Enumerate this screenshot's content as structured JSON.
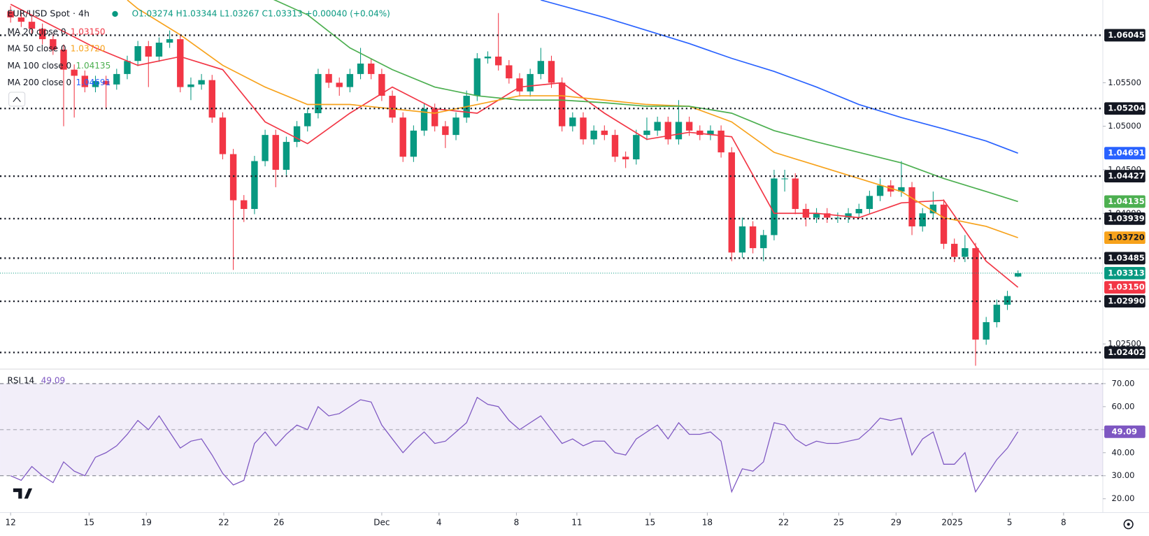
{
  "chart_data": [
    {
      "type": "candlestick",
      "title": "EUR/USD Spot · 4h",
      "quote": "O1.03274 H1.03344 L1.03267 C1.03313 +0.00040 (+0.04%)",
      "up_color": "#089981",
      "down_color": "#f23645",
      "xlim": [
        -1,
        103
      ],
      "ylim": [
        1.0222,
        1.0645
      ],
      "yticks": [
        {
          "value": 1.055,
          "label": "1.05500"
        },
        {
          "value": 1.05,
          "label": "1.05000"
        },
        {
          "value": 1.045,
          "label": "1.04500"
        },
        {
          "value": 1.04,
          "label": "1.04000"
        },
        {
          "value": 1.025,
          "label": "1.02500"
        }
      ],
      "levels": [
        1.06045,
        1.05204,
        1.04427,
        1.03939,
        1.03485,
        {
          "value": 1.0299,
          "label": "1.02990"
        },
        1.02402
      ],
      "candles": [
        [
          1.0632,
          1.0638,
          1.0619,
          1.0625
        ],
        [
          1.0625,
          1.0631,
          1.0614,
          1.062
        ],
        [
          1.062,
          1.0626,
          1.0606,
          1.0612
        ],
        [
          1.0612,
          1.0618,
          1.0594,
          1.06
        ],
        [
          1.06,
          1.0606,
          1.0582,
          1.0588
        ],
        [
          1.0588,
          1.0594,
          1.05,
          1.0565
        ],
        [
          1.0565,
          1.0571,
          1.051,
          1.0558
        ],
        [
          1.0558,
          1.0564,
          1.0539,
          1.0545
        ],
        [
          1.0545,
          1.0558,
          1.0539,
          1.0552
        ],
        [
          1.0552,
          1.0558,
          1.052,
          1.0548
        ],
        [
          1.0548,
          1.0566,
          1.0542,
          1.056
        ],
        [
          1.056,
          1.0581,
          1.0554,
          1.0575
        ],
        [
          1.0575,
          1.0598,
          1.0569,
          1.0592
        ],
        [
          1.0592,
          1.0598,
          1.0545,
          1.058
        ],
        [
          1.058,
          1.0602,
          1.0574,
          1.0596
        ],
        [
          1.0596,
          1.061,
          1.059,
          1.06
        ],
        [
          1.06,
          1.0606,
          1.0539,
          1.0545
        ],
        [
          1.0545,
          1.0556,
          1.053,
          1.0548
        ],
        [
          1.0548,
          1.056,
          1.0542,
          1.0553
        ],
        [
          1.0553,
          1.0559,
          1.0504,
          1.051
        ],
        [
          1.051,
          1.0516,
          1.0462,
          1.0468
        ],
        [
          1.0468,
          1.0474,
          1.0335,
          1.0415
        ],
        [
          1.0415,
          1.0421,
          1.039,
          1.0405
        ],
        [
          1.0405,
          1.0466,
          1.0399,
          1.046
        ],
        [
          1.046,
          1.0496,
          1.0454,
          1.049
        ],
        [
          1.049,
          1.0496,
          1.043,
          1.045
        ],
        [
          1.045,
          1.0488,
          1.0444,
          1.0482
        ],
        [
          1.0482,
          1.0506,
          1.0476,
          1.05
        ],
        [
          1.05,
          1.0521,
          1.0494,
          1.0515
        ],
        [
          1.0515,
          1.0566,
          1.0509,
          1.056
        ],
        [
          1.056,
          1.0566,
          1.0544,
          1.055
        ],
        [
          1.055,
          1.0556,
          1.0535,
          1.0545
        ],
        [
          1.0545,
          1.0566,
          1.0539,
          1.056
        ],
        [
          1.056,
          1.059,
          1.0554,
          1.0572
        ],
        [
          1.0572,
          1.0578,
          1.0554,
          1.056
        ],
        [
          1.056,
          1.0566,
          1.0529,
          1.0535
        ],
        [
          1.0535,
          1.0541,
          1.0504,
          1.051
        ],
        [
          1.051,
          1.0516,
          1.0459,
          1.0465
        ],
        [
          1.0465,
          1.0501,
          1.0459,
          1.0495
        ],
        [
          1.0495,
          1.0526,
          1.0489,
          1.052
        ],
        [
          1.052,
          1.0526,
          1.0494,
          1.05
        ],
        [
          1.05,
          1.0506,
          1.0475,
          1.049
        ],
        [
          1.049,
          1.0516,
          1.0484,
          1.051
        ],
        [
          1.051,
          1.0541,
          1.0504,
          1.0535
        ],
        [
          1.0535,
          1.0584,
          1.0529,
          1.0578
        ],
        [
          1.0578,
          1.0586,
          1.0572,
          1.058
        ],
        [
          1.058,
          1.063,
          1.0564,
          1.057
        ],
        [
          1.057,
          1.0576,
          1.0549,
          1.0555
        ],
        [
          1.0555,
          1.0561,
          1.0534,
          1.054
        ],
        [
          1.054,
          1.0566,
          1.0534,
          1.056
        ],
        [
          1.056,
          1.059,
          1.0554,
          1.0575
        ],
        [
          1.0575,
          1.0581,
          1.0544,
          1.055
        ],
        [
          1.055,
          1.0556,
          1.0494,
          1.05
        ],
        [
          1.05,
          1.0516,
          1.0494,
          1.051
        ],
        [
          1.051,
          1.0516,
          1.0479,
          1.0485
        ],
        [
          1.0485,
          1.0501,
          1.0479,
          1.0495
        ],
        [
          1.0495,
          1.0501,
          1.0484,
          1.049
        ],
        [
          1.049,
          1.0496,
          1.0459,
          1.0465
        ],
        [
          1.0465,
          1.0471,
          1.0452,
          1.0462
        ],
        [
          1.0462,
          1.0496,
          1.0456,
          1.049
        ],
        [
          1.049,
          1.051,
          1.0484,
          1.0495
        ],
        [
          1.0495,
          1.0511,
          1.0489,
          1.0505
        ],
        [
          1.0505,
          1.0511,
          1.0479,
          1.0485
        ],
        [
          1.0485,
          1.053,
          1.0479,
          1.0505
        ],
        [
          1.0505,
          1.0511,
          1.0489,
          1.0495
        ],
        [
          1.0495,
          1.0501,
          1.0484,
          1.049
        ],
        [
          1.049,
          1.0501,
          1.0484,
          1.0495
        ],
        [
          1.0495,
          1.0501,
          1.0464,
          1.047
        ],
        [
          1.047,
          1.0476,
          1.0345,
          1.0355
        ],
        [
          1.0355,
          1.0395,
          1.0349,
          1.0385
        ],
        [
          1.0385,
          1.0391,
          1.0354,
          1.036
        ],
        [
          1.036,
          1.0381,
          1.0345,
          1.0375
        ],
        [
          1.0375,
          1.045,
          1.0369,
          1.044
        ],
        [
          1.044,
          1.045,
          1.0425,
          1.044
        ],
        [
          1.044,
          1.0446,
          1.0399,
          1.0405
        ],
        [
          1.0405,
          1.0411,
          1.0385,
          1.0395
        ],
        [
          1.0395,
          1.0406,
          1.0389,
          1.04
        ],
        [
          1.04,
          1.0406,
          1.0389,
          1.0395
        ],
        [
          1.0395,
          1.0401,
          1.0389,
          1.0395
        ],
        [
          1.0395,
          1.0406,
          1.0389,
          1.04
        ],
        [
          1.04,
          1.0411,
          1.0394,
          1.0405
        ],
        [
          1.0405,
          1.0426,
          1.0399,
          1.042
        ],
        [
          1.042,
          1.044,
          1.0414,
          1.0432
        ],
        [
          1.0432,
          1.0438,
          1.0419,
          1.0425
        ],
        [
          1.0425,
          1.046,
          1.0419,
          1.043
        ],
        [
          1.043,
          1.0436,
          1.0375,
          1.0385
        ],
        [
          1.0385,
          1.0406,
          1.0379,
          1.04
        ],
        [
          1.04,
          1.0425,
          1.0394,
          1.041
        ],
        [
          1.041,
          1.0416,
          1.0359,
          1.0365
        ],
        [
          1.0365,
          1.0371,
          1.0344,
          1.035
        ],
        [
          1.035,
          1.0375,
          1.0344,
          1.036
        ],
        [
          1.036,
          1.0366,
          1.0225,
          1.0255
        ],
        [
          1.0255,
          1.0281,
          1.0249,
          1.0275
        ],
        [
          1.0275,
          1.0301,
          1.0269,
          1.0295
        ],
        [
          1.0295,
          1.0311,
          1.0289,
          1.0305
        ],
        [
          1.03274,
          1.03344,
          1.03267,
          1.03313
        ]
      ],
      "series": [
        {
          "name": "MA 20 close 0",
          "color": "#f23645",
          "last_label": "1.03150",
          "x": [
            0,
            4,
            8,
            12,
            16,
            20,
            24,
            28,
            32,
            36,
            40,
            44,
            48,
            52,
            56,
            60,
            64,
            68,
            72,
            76,
            80,
            84,
            88,
            92,
            95
          ],
          "values": [
            1.064,
            1.0615,
            1.059,
            1.057,
            1.058,
            1.0565,
            1.0505,
            1.048,
            1.0515,
            1.0545,
            1.052,
            1.0515,
            1.0545,
            1.055,
            1.0515,
            1.0485,
            1.0493,
            1.0488,
            1.04,
            1.04,
            1.0395,
            1.0412,
            1.0415,
            1.0345,
            1.0315
          ]
        },
        {
          "name": "MA 50 close 0",
          "color": "#f7a21b",
          "last_label": "1.03720",
          "x": [
            11,
            12,
            16,
            20,
            24,
            28,
            32,
            36,
            40,
            44,
            48,
            52,
            56,
            60,
            64,
            68,
            72,
            76,
            80,
            84,
            88,
            92,
            95
          ],
          "values": [
            1.0645,
            1.0635,
            1.0605,
            1.057,
            1.0545,
            1.0525,
            1.0525,
            1.052,
            1.0515,
            1.0525,
            1.0535,
            1.0535,
            1.053,
            1.0525,
            1.0523,
            1.0505,
            1.047,
            1.0455,
            1.044,
            1.0425,
            1.0395,
            1.0385,
            1.0372
          ]
        },
        {
          "name": "MA 100 close 0",
          "color": "#4caf50",
          "last_label": "1.04135",
          "x": [
            24,
            28,
            32,
            36,
            40,
            44,
            48,
            52,
            56,
            60,
            64,
            68,
            72,
            76,
            80,
            84,
            88,
            92,
            95
          ],
          "values": [
            1.065,
            1.0628,
            1.059,
            1.0565,
            1.0545,
            1.0535,
            1.053,
            1.053,
            1.0527,
            1.0523,
            1.0523,
            1.0515,
            1.0495,
            1.0482,
            1.047,
            1.0458,
            1.044,
            1.0425,
            1.04135
          ]
        },
        {
          "name": "MA 200 close 0",
          "color": "#2962ff",
          "last_label": "1.04691",
          "x": [
            50,
            56,
            60,
            64,
            68,
            72,
            76,
            80,
            84,
            88,
            92,
            95
          ],
          "values": [
            1.0645,
            1.0625,
            1.061,
            1.0595,
            1.0578,
            1.0563,
            1.0545,
            1.0525,
            1.051,
            1.0497,
            1.0483,
            1.04691
          ]
        }
      ]
    },
    {
      "type": "line",
      "title": "RSI 14",
      "xlim": [
        -1,
        103
      ],
      "ylim": [
        14,
        76
      ],
      "band": [
        30,
        70
      ],
      "yticks": [
        {
          "value": 70,
          "label": "70.00"
        },
        {
          "value": 60,
          "label": "60.00"
        },
        {
          "value": 50,
          "label": "50.00"
        },
        {
          "value": 40,
          "label": "40.00"
        },
        {
          "value": 30,
          "label": "30.00"
        },
        {
          "value": 20,
          "label": "20.00"
        }
      ],
      "xticks": [
        {
          "value": 0,
          "label": "12"
        },
        {
          "value": 7.4,
          "label": "15"
        },
        {
          "value": 12.8,
          "label": "19"
        },
        {
          "value": 20.1,
          "label": "22"
        },
        {
          "value": 25.3,
          "label": "26"
        },
        {
          "value": 35,
          "label": "Dec"
        },
        {
          "value": 40.4,
          "label": "4"
        },
        {
          "value": 47.7,
          "label": "8"
        },
        {
          "value": 53.4,
          "label": "11"
        },
        {
          "value": 60.3,
          "label": "15"
        },
        {
          "value": 65.7,
          "label": "18"
        },
        {
          "value": 72.9,
          "label": "22"
        },
        {
          "value": 78.1,
          "label": "25"
        },
        {
          "value": 83.5,
          "label": "29"
        },
        {
          "value": 88.8,
          "label": "2025"
        },
        {
          "value": 94.2,
          "label": "5"
        },
        {
          "value": 99.3,
          "label": "8"
        }
      ],
      "series": [
        {
          "name": "RSI 14",
          "color": "#7e57c2",
          "values": [
            30,
            28,
            34,
            30,
            27,
            36,
            32,
            30,
            38,
            40,
            43,
            48,
            54,
            50,
            56,
            49,
            42,
            45,
            46,
            39,
            31,
            26,
            28,
            44,
            49,
            43,
            48,
            52,
            50,
            60,
            56,
            57,
            60,
            63,
            62,
            52,
            46,
            40,
            45,
            49,
            44,
            45,
            49,
            53,
            64,
            61,
            60,
            54,
            50,
            53,
            56,
            50,
            44,
            46,
            43,
            45,
            45,
            40,
            39,
            46,
            49,
            52,
            46,
            53,
            48,
            48,
            49,
            45,
            23,
            33,
            32,
            36,
            53,
            52,
            46,
            43,
            45,
            44,
            44,
            45,
            46,
            50,
            55,
            54,
            55,
            39,
            46,
            49,
            35,
            35,
            40,
            23,
            30,
            37,
            42,
            49.09
          ]
        }
      ]
    }
  ]
}
